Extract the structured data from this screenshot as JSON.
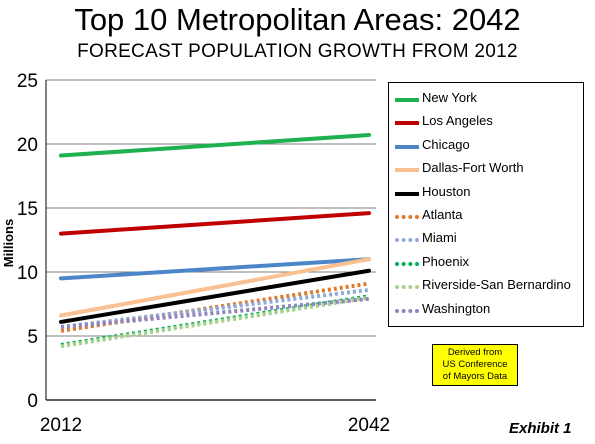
{
  "chart_data": {
    "type": "line",
    "title": "Top 10 Metropolitan Areas: 2042",
    "subtitle": "FORECAST POPULATION GROWTH FROM 2012",
    "ylabel": "Millions",
    "xlabel": "",
    "x": [
      "2012",
      "2042"
    ],
    "ylim": [
      0,
      25
    ],
    "yticks": [
      "0",
      "5",
      "10",
      "15",
      "20",
      "25"
    ],
    "grid": true,
    "legend_position": "right",
    "series": [
      {
        "name": "New York",
        "values": [
          19.1,
          20.7
        ],
        "color": "#1fb04f",
        "dash": "solid"
      },
      {
        "name": "Los Angeles",
        "values": [
          13.0,
          14.6
        ],
        "color": "#c00000",
        "dash": "solid"
      },
      {
        "name": "Chicago",
        "values": [
          9.5,
          11.0
        ],
        "color": "#4a86c8",
        "dash": "solid"
      },
      {
        "name": "Dallas-Fort Worth",
        "values": [
          6.6,
          11.0
        ],
        "color": "#fac090",
        "dash": "solid"
      },
      {
        "name": "Houston",
        "values": [
          6.1,
          10.1
        ],
        "color": "#000000",
        "dash": "solid"
      },
      {
        "name": "Atlanta",
        "values": [
          5.4,
          9.1
        ],
        "color": "#e07a2a",
        "dash": "dotted"
      },
      {
        "name": "Miami",
        "values": [
          5.7,
          8.6
        ],
        "color": "#8eaadb",
        "dash": "dotted"
      },
      {
        "name": "Phoenix",
        "values": [
          4.3,
          8.1
        ],
        "color": "#00b050",
        "dash": "dotted"
      },
      {
        "name": "Riverside-San Bernardino",
        "values": [
          4.2,
          8.0
        ],
        "color": "#a9d18e",
        "dash": "dotted"
      },
      {
        "name": "Washington",
        "values": [
          5.7,
          7.9
        ],
        "color": "#8e86c0",
        "dash": "dotted"
      }
    ],
    "annotation": "Derived from US Conference of Mayors Data",
    "annotation_lines": [
      "Derived from",
      "US Conference",
      "of Mayors Data"
    ]
  },
  "footer": {
    "exhibit_label": "Exhibit 1"
  }
}
